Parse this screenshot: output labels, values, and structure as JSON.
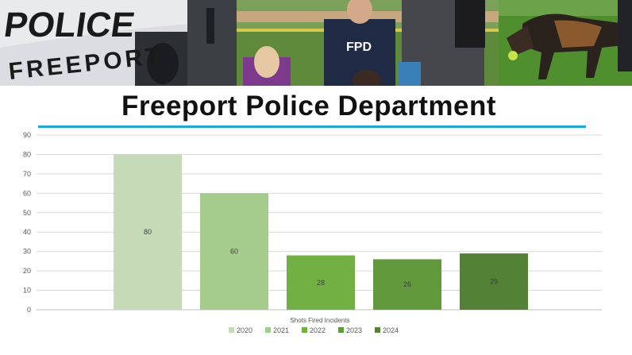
{
  "header": {
    "title": "Freeport Police Department",
    "accent_color": "#1fa7e0",
    "photos": [
      {
        "icon": "police-car-photo",
        "text_line1": "POLICE",
        "text_line2": "FREEPORT"
      },
      {
        "icon": "community-event-photo",
        "shirt_text": "FPD"
      },
      {
        "icon": "k9-dog-photo"
      }
    ]
  },
  "chart_data": {
    "type": "bar",
    "xlabel": "Shots Fired Incidents",
    "ylabel": "",
    "ylim": [
      0,
      90
    ],
    "ytick_step": 10,
    "grid": true,
    "legend_position": "bottom",
    "series": [
      {
        "name": "2020",
        "values": [
          80
        ],
        "color": "#c5dbb8"
      },
      {
        "name": "2021",
        "values": [
          60
        ],
        "color": "#a5cc8d"
      },
      {
        "name": "2022",
        "values": [
          28
        ],
        "color": "#72b043"
      },
      {
        "name": "2023",
        "values": [
          26
        ],
        "color": "#62993d"
      },
      {
        "name": "2024",
        "values": [
          29
        ],
        "color": "#538135"
      }
    ]
  }
}
